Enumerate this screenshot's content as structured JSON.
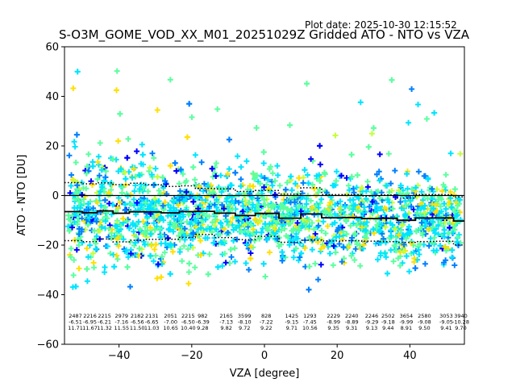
{
  "plot_date": "Plot date: 2025-10-30 12:15:52",
  "chart_data": {
    "type": "scatter",
    "title": "S-O3M_GOME_VOD_XX_M01_20251029Z Gridded ATO - NTO vs VZA",
    "xlabel": "VZA [degree]",
    "ylabel": "ATO - NTO [DU]",
    "xlim": [
      -55,
      55
    ],
    "ylim": [
      -60,
      60
    ],
    "xticks": [
      -40,
      -20,
      0,
      20,
      40
    ],
    "yticks": [
      -60,
      -40,
      -20,
      0,
      20,
      40,
      60
    ],
    "marker": "+",
    "colors": [
      "#0000ff",
      "#0080ff",
      "#00e5ff",
      "#5cff9f",
      "#c4ff3c",
      "#ffe000"
    ],
    "zero_line": 0,
    "bins": [
      {
        "x": -52,
        "count": "2487",
        "mean": -6.51,
        "std": 11.71
      },
      {
        "x": -48,
        "count": "2216",
        "mean": -6.95,
        "std": 11.67
      },
      {
        "x": -44,
        "count": "2215",
        "mean": -6.21,
        "std": 11.32
      },
      {
        "x": -39.3,
        "count": "2979",
        "mean": -7.16,
        "std": 11.55
      },
      {
        "x": -35,
        "count": "2182",
        "mean": -6.56,
        "std": 11.5
      },
      {
        "x": -31,
        "count": "2131",
        "mean": -6.65,
        "std": 11.03
      },
      {
        "x": -25.8,
        "count": "2051",
        "mean": -7.0,
        "std": 10.65
      },
      {
        "x": -21,
        "count": "2215",
        "mean": -6.5,
        "std": 10.4
      },
      {
        "x": -17,
        "count": "982",
        "mean": -6.39,
        "std": 9.28
      },
      {
        "x": -10.5,
        "count": "2165",
        "mean": -7.13,
        "std": 9.82
      },
      {
        "x": -5.5,
        "count": "3599",
        "mean": -8.1,
        "std": 9.72
      },
      {
        "x": 0.5,
        "count": "828",
        "mean": -7.22,
        "std": 9.22
      },
      {
        "x": 7.5,
        "count": "1425",
        "mean": -9.15,
        "std": 9.71
      },
      {
        "x": 12.5,
        "count": "1293",
        "mean": -7.45,
        "std": 10.56
      },
      {
        "x": 19,
        "count": "2229",
        "mean": -8.99,
        "std": 9.35
      },
      {
        "x": 24,
        "count": "2240",
        "mean": -8.89,
        "std": 9.31
      },
      {
        "x": 29.5,
        "count": "2246",
        "mean": -9.29,
        "std": 9.13
      },
      {
        "x": 34,
        "count": "2502",
        "mean": -9.18,
        "std": 9.44
      },
      {
        "x": 39,
        "count": "3654",
        "mean": -9.99,
        "std": 8.91
      },
      {
        "x": 44,
        "count": "2580",
        "mean": -9.08,
        "std": 9.5
      },
      {
        "x": 50,
        "count": "3053",
        "mean": -9.05,
        "std": 9.41
      },
      {
        "x": 54,
        "count": "3940",
        "mean": -10.28,
        "std": 9.7
      }
    ]
  }
}
